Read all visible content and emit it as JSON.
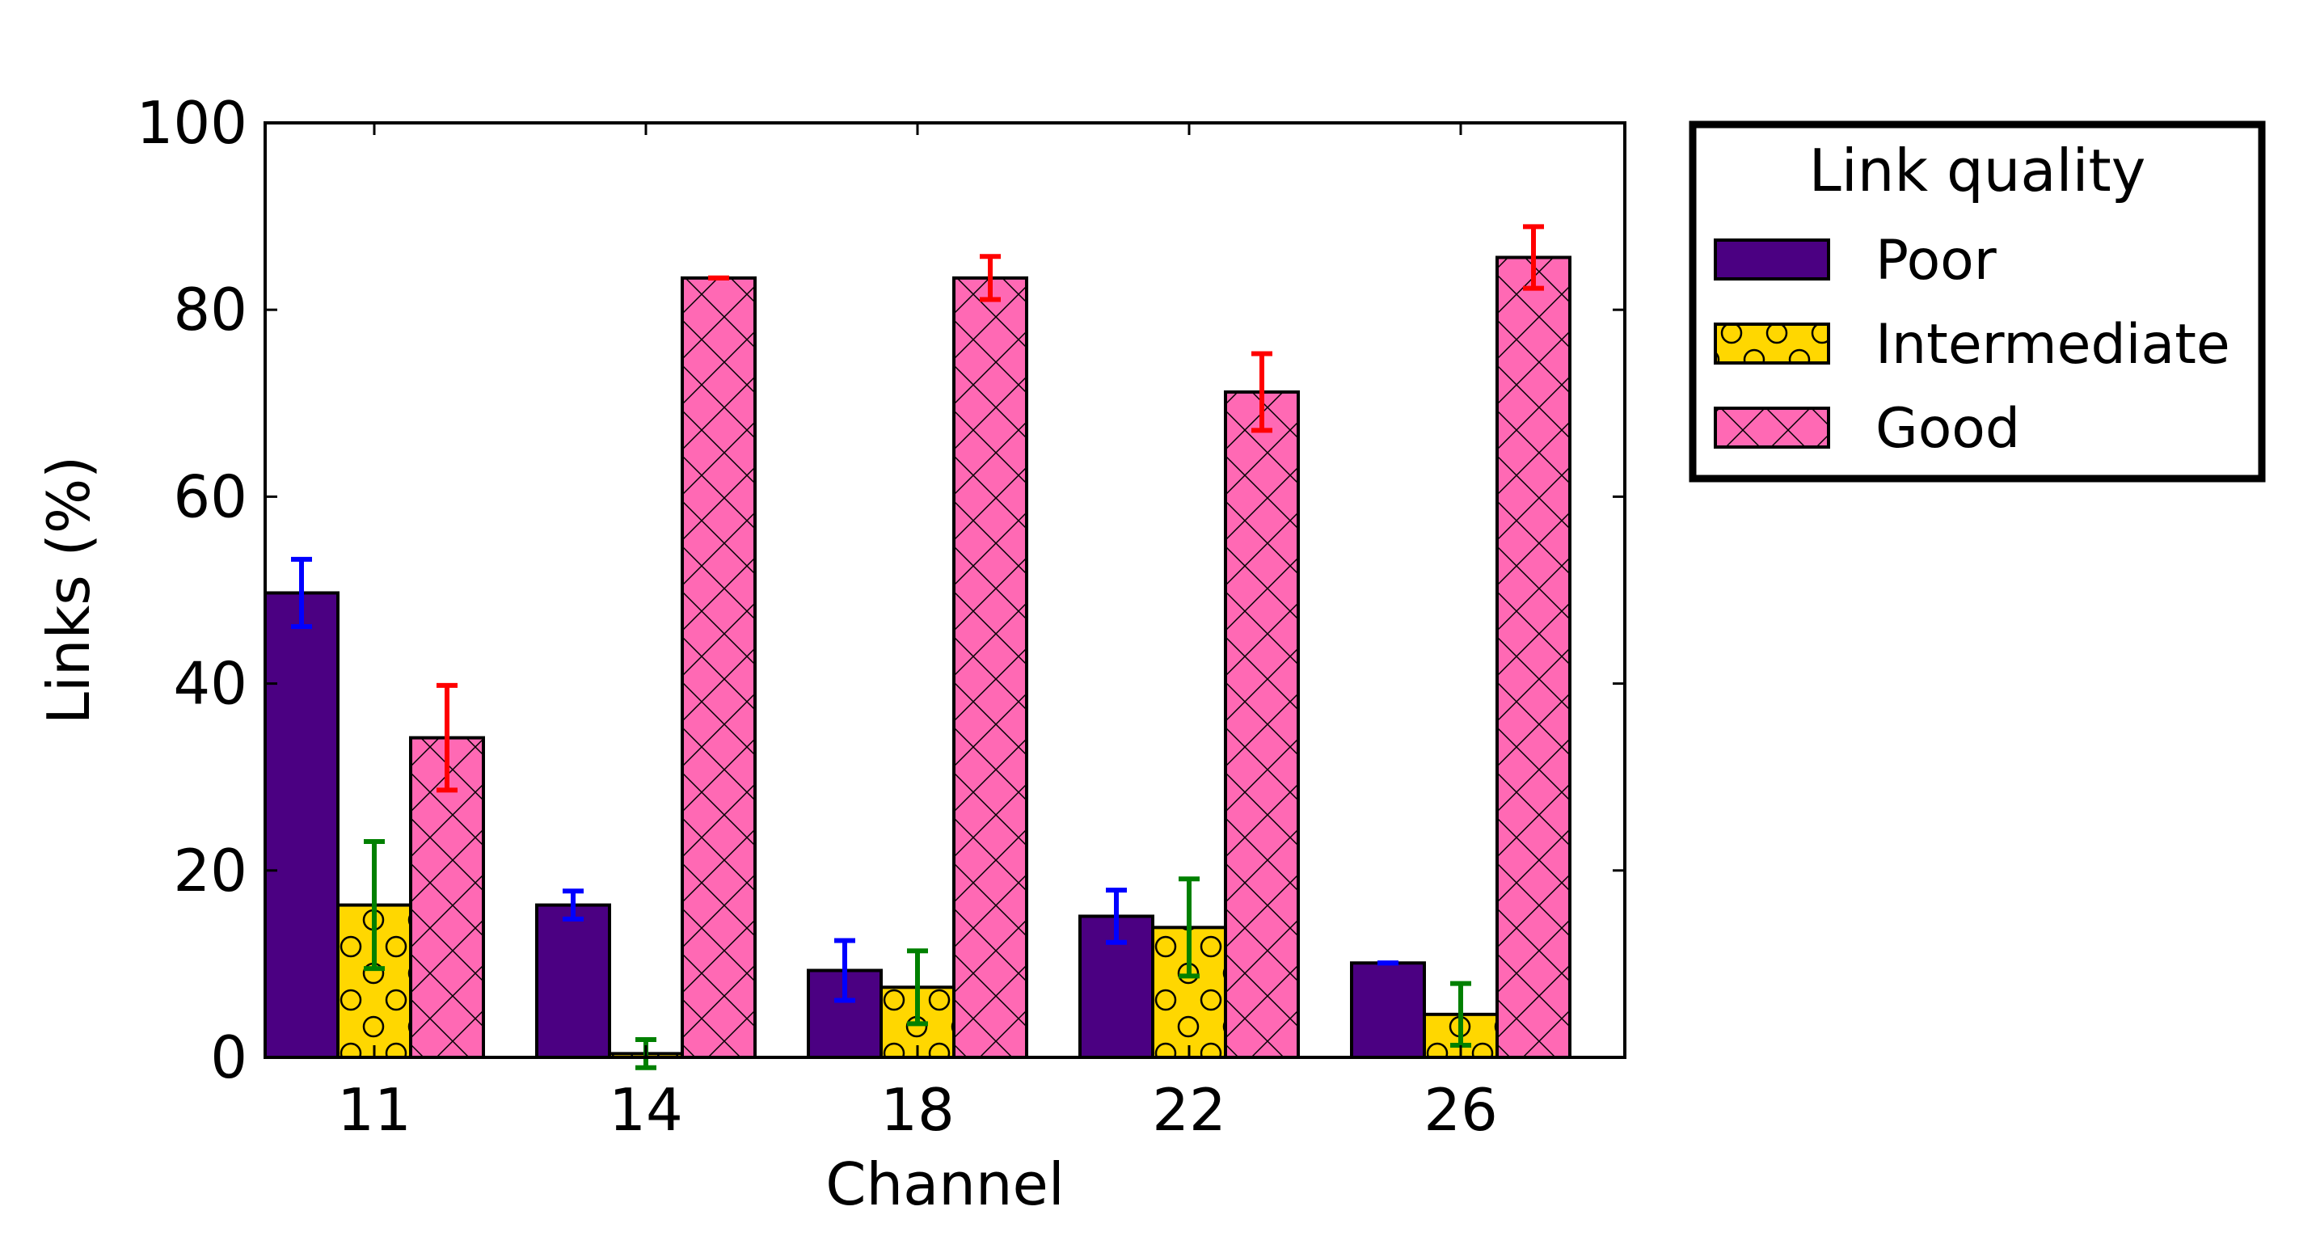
{
  "chart_data": {
    "type": "bar",
    "title": "",
    "xlabel": "Channel",
    "ylabel": "Links (%)",
    "ylim": [
      0,
      100
    ],
    "yticks": [
      0,
      20,
      40,
      60,
      80,
      100
    ],
    "categories": [
      "11",
      "14",
      "18",
      "22",
      "26"
    ],
    "legend": {
      "title": "Link quality",
      "placement": "outside-top-right"
    },
    "series": [
      {
        "name": "Poor",
        "color": "#4B0082",
        "errorColor": "#0000FF",
        "pattern": "none",
        "values": [
          49.7,
          16.3,
          9.3,
          15.1,
          10.1
        ],
        "errors": [
          3.6,
          1.5,
          3.2,
          2.8,
          0.0
        ]
      },
      {
        "name": "Intermediate",
        "color": "#FFD700",
        "errorColor": "#008000",
        "pattern": "circles",
        "values": [
          16.3,
          0.4,
          7.5,
          13.9,
          4.6
        ],
        "errors": [
          6.8,
          1.5,
          3.9,
          5.2,
          3.3
        ]
      },
      {
        "name": "Good",
        "color": "#FF69B4",
        "errorColor": "#FF0000",
        "pattern": "crosshatch",
        "values": [
          34.2,
          83.4,
          83.4,
          71.2,
          85.6
        ],
        "errors": [
          5.6,
          0.0,
          2.3,
          4.1,
          3.3
        ]
      }
    ]
  }
}
